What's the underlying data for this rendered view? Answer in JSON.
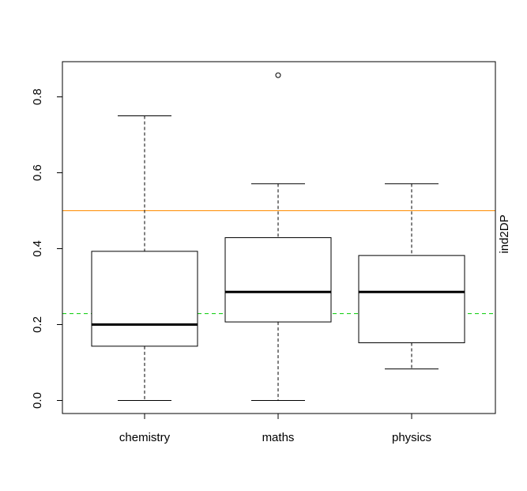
{
  "chart_data": {
    "type": "boxplot",
    "categories": [
      "chemistry",
      "maths",
      "physics"
    ],
    "boxes": [
      {
        "name": "chemistry",
        "whisker_low": 0.0,
        "q1": 0.143,
        "median": 0.2,
        "q3": 0.393,
        "whisker_high": 0.75,
        "outliers": []
      },
      {
        "name": "maths",
        "whisker_low": 0.0,
        "q1": 0.207,
        "median": 0.286,
        "q3": 0.429,
        "whisker_high": 0.571,
        "outliers": [
          0.857
        ]
      },
      {
        "name": "physics",
        "whisker_low": 0.083,
        "q1": 0.152,
        "median": 0.286,
        "q3": 0.382,
        "whisker_high": 0.571,
        "outliers": []
      }
    ],
    "reference_lines": [
      {
        "y": 0.5,
        "style": "solid",
        "color": "#ff8c00"
      },
      {
        "y": 0.229,
        "style": "dashed",
        "color": "#00cc00"
      }
    ],
    "y_ticks": [
      0.0,
      0.2,
      0.4,
      0.6,
      0.8
    ],
    "y_tick_labels": [
      "0.0",
      "0.2",
      "0.4",
      "0.6",
      "0.8"
    ],
    "ylim": [
      -0.035,
      0.89
    ],
    "right_label": "ind2DP",
    "grid": false
  }
}
